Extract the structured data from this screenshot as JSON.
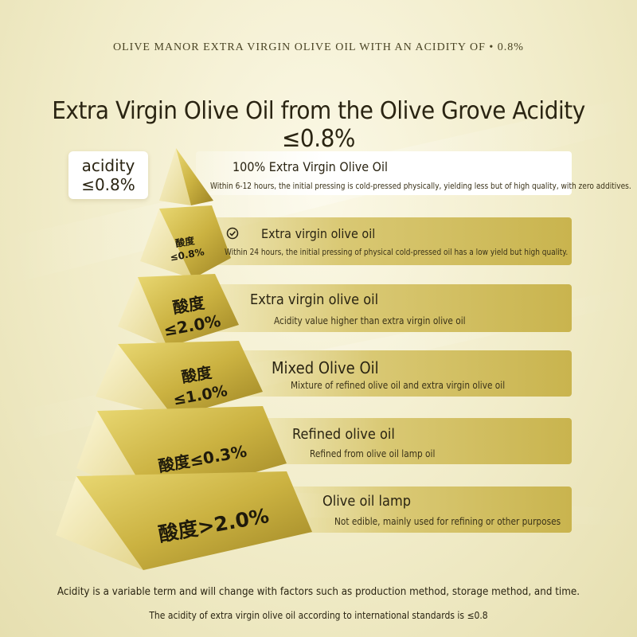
{
  "header": {
    "tagline": "OLIVE MANOR EXTRA VIRGIN OLIVE OIL WITH AN ACIDITY OF • 0.8%",
    "title": "Extra Virgin Olive Oil from the Olive Grove Acidity ≤0.8%"
  },
  "badge": {
    "line1": "acidity",
    "line2": "≤0.8%"
  },
  "tiers": [
    {
      "label": "",
      "title": "100% Extra Virgin Olive Oil",
      "desc": "Within 6-12 hours, the initial pressing is cold-pressed physically, yielding less but of high quality, with zero additives."
    },
    {
      "label_line1": "酸度",
      "label_line2": "≤0.8%",
      "title": "Extra virgin olive oil",
      "desc": "Within 24 hours, the initial pressing of physical cold-pressed oil has a low yield but high quality."
    },
    {
      "label_line1": "酸度",
      "label_line2": "≤2.0%",
      "title": "Extra virgin olive oil",
      "desc": "Acidity value higher than extra virgin olive oil"
    },
    {
      "label_line1": "酸度",
      "label_line2": "≤1.0%",
      "title": "Mixed Olive Oil",
      "desc": "Mixture of refined olive oil and extra virgin olive oil"
    },
    {
      "label": "酸度≤0.3%",
      "title": "Refined olive oil",
      "desc": "Refined from olive oil lamp oil"
    },
    {
      "label": "酸度>2.0%",
      "title": "Olive oil lamp",
      "desc": "Not edible, mainly used for refining or other purposes"
    }
  ],
  "footer": {
    "note1": "Acidity is a variable term and will change with factors such as production method, storage method, and time.",
    "note2": "The acidity of extra virgin olive oil according to international standards is ≤0.8"
  },
  "colors": {
    "gold_light": "#f3e9a6",
    "gold_mid": "#d9c462",
    "gold_dark": "#a8902c",
    "text": "#2a2412"
  }
}
